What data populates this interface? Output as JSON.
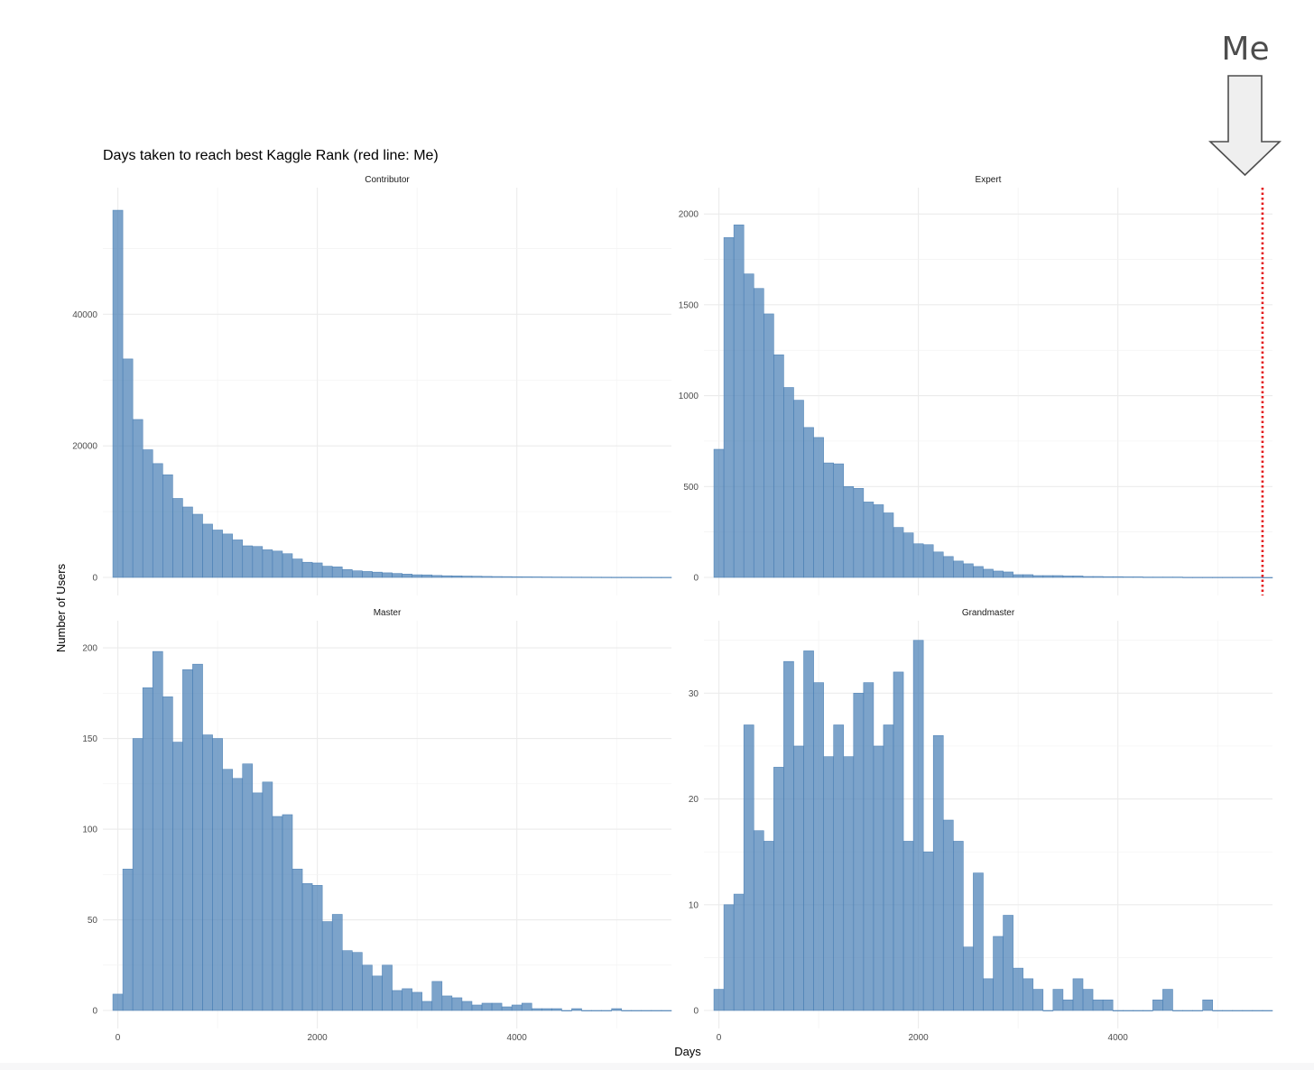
{
  "chart_data": {
    "type": "bar",
    "title": "Days taken to reach best Kaggle Rank (red line: Me)",
    "xlabel": "Days",
    "ylabel": "Number of Users",
    "annotation": {
      "text": "Me",
      "arrow": "down-arrow-icon"
    },
    "me_days": 5450,
    "bin_width": 100,
    "x_range": [
      -150,
      5550
    ],
    "x_ticks": [
      0,
      2000,
      4000
    ],
    "bar_color": "#4a80b5",
    "me_line_color": "#e41a1c",
    "grid": true,
    "panels": [
      {
        "name": "Contributor",
        "ylim": [
          0,
          58000
        ],
        "y_ticks": [
          0,
          20000,
          40000
        ],
        "bins_start": -50,
        "values": [
          55800,
          33200,
          24000,
          19400,
          17300,
          15600,
          12000,
          10700,
          9600,
          8100,
          7200,
          6600,
          5700,
          4800,
          4700,
          4200,
          4000,
          3600,
          2800,
          2300,
          2200,
          1700,
          1600,
          1200,
          1000,
          900,
          800,
          700,
          600,
          500,
          400,
          380,
          300,
          250,
          230,
          200,
          180,
          150,
          130,
          120,
          100,
          90,
          80,
          70,
          60,
          55,
          50,
          45,
          40,
          35,
          30,
          30,
          25,
          25,
          20,
          20
        ]
      },
      {
        "name": "Expert",
        "ylim": [
          0,
          2100
        ],
        "y_ticks": [
          0,
          500,
          1000,
          1500,
          2000
        ],
        "bins_start": -50,
        "values": [
          705,
          1870,
          1940,
          1670,
          1590,
          1450,
          1225,
          1045,
          975,
          825,
          770,
          630,
          625,
          500,
          490,
          415,
          400,
          355,
          275,
          245,
          185,
          180,
          140,
          115,
          90,
          75,
          60,
          45,
          35,
          30,
          15,
          15,
          10,
          10,
          10,
          8,
          8,
          5,
          5,
          4,
          4,
          3,
          3,
          2,
          2,
          2,
          2,
          1,
          1,
          1,
          1,
          1,
          1,
          1,
          1,
          0
        ]
      },
      {
        "name": "Master",
        "ylim": [
          0,
          210
        ],
        "y_ticks": [
          0,
          50,
          100,
          150,
          200
        ],
        "bins_start": -50,
        "values": [
          9,
          78,
          150,
          178,
          198,
          173,
          148,
          188,
          191,
          152,
          150,
          133,
          128,
          136,
          120,
          126,
          107,
          108,
          78,
          70,
          69,
          49,
          53,
          33,
          32,
          25,
          19,
          25,
          11,
          12,
          10,
          5,
          16,
          8,
          7,
          5,
          3,
          4,
          4,
          2,
          3,
          4,
          1,
          1,
          1,
          0,
          1,
          0,
          0,
          0,
          1,
          0,
          0,
          0,
          0,
          0
        ]
      },
      {
        "name": "Grandmaster",
        "ylim": [
          0,
          36
        ],
        "y_ticks": [
          0,
          10,
          20,
          30
        ],
        "bins_start": -50,
        "values": [
          2,
          10,
          11,
          27,
          17,
          16,
          23,
          33,
          25,
          34,
          31,
          24,
          27,
          24,
          30,
          31,
          25,
          27,
          32,
          16,
          35,
          15,
          26,
          18,
          16,
          6,
          13,
          3,
          7,
          9,
          4,
          3,
          2,
          0,
          2,
          1,
          3,
          2,
          1,
          1,
          0,
          0,
          0,
          0,
          1,
          2,
          0,
          0,
          0,
          1,
          0,
          0,
          0,
          0,
          0,
          0
        ]
      }
    ]
  }
}
